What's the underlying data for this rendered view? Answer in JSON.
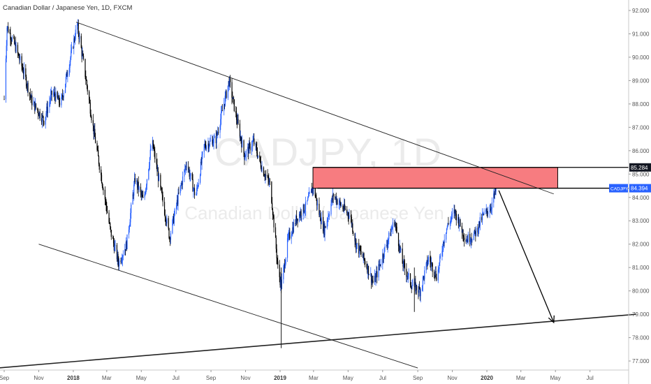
{
  "header": {
    "title": "Canadian Dollar / Japanese Yen, 1D, FXCM"
  },
  "watermark": {
    "symbol": "CADJPY, 1D",
    "description": "Canadian Dollar / Japanese Yen"
  },
  "colors": {
    "up": "#2962ff",
    "down": "#000000",
    "zone_fill": "#f77c80",
    "price_label_bg": "#2962ff",
    "axis_text": "#555555"
  },
  "chart_data": {
    "type": "candlestick",
    "title": "Canadian Dollar / Japanese Yen, 1D, FXCM",
    "ylim": [
      76.7,
      92.2
    ],
    "y_ticks": [
      "92.000",
      "91.000",
      "90.000",
      "89.000",
      "88.000",
      "87.000",
      "86.000",
      "85.000",
      "84.000",
      "83.000",
      "82.000",
      "81.000",
      "80.000",
      "79.000",
      "78.000",
      "77.000"
    ],
    "x_ticks": [
      {
        "label": "Sep",
        "bold": false
      },
      {
        "label": "Nov",
        "bold": false
      },
      {
        "label": "2018",
        "bold": true
      },
      {
        "label": "Mar",
        "bold": false
      },
      {
        "label": "May",
        "bold": false
      },
      {
        "label": "Jul",
        "bold": false
      },
      {
        "label": "Sep",
        "bold": false
      },
      {
        "label": "Nov",
        "bold": false
      },
      {
        "label": "2019",
        "bold": true
      },
      {
        "label": "Mar",
        "bold": false
      },
      {
        "label": "May",
        "bold": false
      },
      {
        "label": "Jul",
        "bold": false
      },
      {
        "label": "Sep",
        "bold": false
      },
      {
        "label": "Nov",
        "bold": false
      },
      {
        "label": "2020",
        "bold": true
      },
      {
        "label": "Mar",
        "bold": false
      },
      {
        "label": "May",
        "bold": false
      },
      {
        "label": "Jul",
        "bold": false
      }
    ],
    "price_path": [
      [
        "2017-09-01",
        88.2
      ],
      [
        "2017-09-06",
        91.3
      ],
      [
        "2017-09-20",
        90.5
      ],
      [
        "2017-10-05",
        89.4
      ],
      [
        "2017-10-20",
        88.1
      ],
      [
        "2017-11-10",
        87.3
      ],
      [
        "2017-11-25",
        88.5
      ],
      [
        "2017-12-10",
        88.0
      ],
      [
        "2018-01-08",
        91.4
      ],
      [
        "2018-01-20",
        89.6
      ],
      [
        "2018-02-05",
        87.0
      ],
      [
        "2018-02-20",
        84.8
      ],
      [
        "2018-03-08",
        82.5
      ],
      [
        "2018-03-22",
        81.2
      ],
      [
        "2018-04-05",
        82.0
      ],
      [
        "2018-04-20",
        84.8
      ],
      [
        "2018-05-05",
        83.8
      ],
      [
        "2018-05-20",
        86.4
      ],
      [
        "2018-06-05",
        84.2
      ],
      [
        "2018-06-20",
        82.3
      ],
      [
        "2018-07-05",
        84.0
      ],
      [
        "2018-07-20",
        85.5
      ],
      [
        "2018-08-05",
        84.0
      ],
      [
        "2018-08-20",
        86.2
      ],
      [
        "2018-09-10",
        86.5
      ],
      [
        "2018-09-22",
        87.8
      ],
      [
        "2018-10-03",
        89.0
      ],
      [
        "2018-10-15",
        87.5
      ],
      [
        "2018-10-30",
        85.8
      ],
      [
        "2018-11-15",
        86.4
      ],
      [
        "2018-12-01",
        85.2
      ],
      [
        "2018-12-15",
        84.5
      ],
      [
        "2018-12-28",
        81.0
      ],
      [
        "2019-01-03",
        80.2
      ],
      [
        "2019-01-15",
        82.2
      ],
      [
        "2019-02-01",
        83.2
      ],
      [
        "2019-02-15",
        83.6
      ],
      [
        "2019-03-01",
        84.5
      ],
      [
        "2019-03-10",
        83.4
      ],
      [
        "2019-03-20",
        82.6
      ],
      [
        "2019-04-05",
        84.1
      ],
      [
        "2019-04-20",
        83.6
      ],
      [
        "2019-05-05",
        83.2
      ],
      [
        "2019-05-15",
        82.0
      ],
      [
        "2019-06-01",
        81.2
      ],
      [
        "2019-06-15",
        80.3
      ],
      [
        "2019-07-05",
        81.8
      ],
      [
        "2019-07-22",
        83.0
      ],
      [
        "2019-08-05",
        81.2
      ],
      [
        "2019-08-20",
        80.3
      ],
      [
        "2019-09-05",
        80.0
      ],
      [
        "2019-09-20",
        81.4
      ],
      [
        "2019-10-05",
        80.6
      ],
      [
        "2019-10-20",
        82.6
      ],
      [
        "2019-11-05",
        83.4
      ],
      [
        "2019-11-25",
        82.2
      ],
      [
        "2019-12-10",
        82.4
      ],
      [
        "2019-12-25",
        83.2
      ],
      [
        "2020-01-08",
        83.6
      ],
      [
        "2020-01-18",
        84.4
      ]
    ],
    "shapes": {
      "resistance_zone": {
        "label": "resistance-zone",
        "x1": "2019-02-28",
        "x2": "2020-05-05",
        "y1": 84.394,
        "y2": 85.284
      },
      "upper_trendline": {
        "x1": "2018-01-06",
        "y1": 91.5,
        "x2": "2020-04-28",
        "y2": 84.15
      },
      "lower_trendline": {
        "x1": "2017-11-01",
        "y1": 82.0,
        "x2": "2019-09-01",
        "y2": 76.7
      },
      "support_trendline": {
        "x1": "2017-08-20",
        "y1": 76.7,
        "x2": "2020-09-20",
        "y2": 79.0
      },
      "projection_arrow": {
        "x1": "2020-01-22",
        "y1": 84.3,
        "x2": "2020-04-28",
        "y2": 78.65
      }
    },
    "price_labels": [
      {
        "value": "85.284",
        "y": 85.284,
        "style": "dark"
      },
      {
        "value": "84.394",
        "y": 84.394,
        "style": "blue"
      }
    ],
    "current_label": "CADJPY"
  }
}
